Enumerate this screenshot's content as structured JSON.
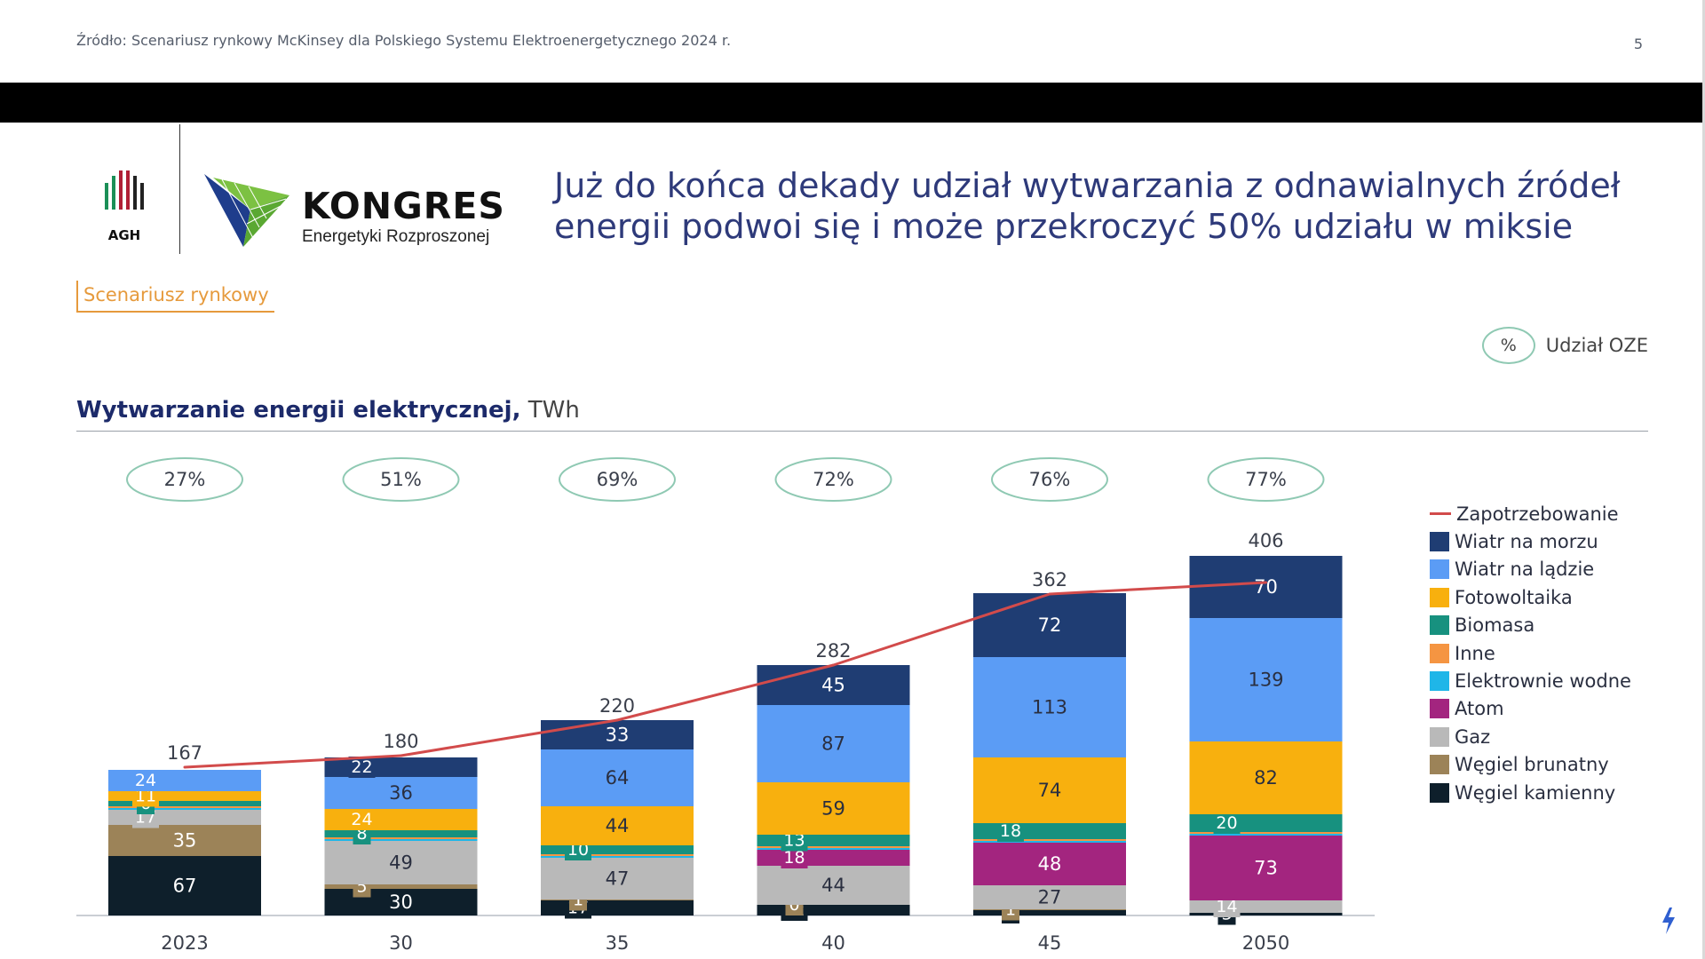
{
  "header": {
    "source": "Źródło: Scenariusz rynkowy McKinsey dla Polskiego Systemu Elektroenergetycznego 2024 r.",
    "page_number": "5"
  },
  "logos": {
    "agh_text": "AGH",
    "kongres_title": "KONGRES",
    "kongres_subtitle": "Energetyki Rozproszonej"
  },
  "headline": "Już do końca dekady udział wytwarzania z odnawialnych źródeł energii podwoi się i może przekroczyć 50% udziału w miksie",
  "scenario_tag": "Scenariusz rynkowy",
  "oze_legend": {
    "symbol": "%",
    "label": "Udział OZE"
  },
  "chart_title": {
    "main": "Wytwarzanie energii elektrycznej,",
    "unit": "TWh"
  },
  "colors": {
    "Wiatr na morzu": "#1f3d73",
    "Wiatr na lądzie": "#5b9cf5",
    "Fotowoltaika": "#f8b00e",
    "Biomasa": "#17917f",
    "Inne": "#f59542",
    "Elektrownie wodne": "#1fb6e8",
    "Atom": "#a3257f",
    "Gaz": "#b9b9b9",
    "Węgiel brunatny": "#9c8358",
    "Węgiel kamienny": "#0e1f2b",
    "Zapotrzebowanie": "#d24b4b"
  },
  "chart_data": {
    "type": "bar",
    "stacked": true,
    "categories": [
      "2023",
      "30",
      "35",
      "40",
      "45",
      "2050"
    ],
    "totals": [
      167,
      180,
      220,
      282,
      362,
      406
    ],
    "oze_share": [
      "27%",
      "51%",
      "69%",
      "72%",
      "76%",
      "77%"
    ],
    "series": [
      {
        "name": "Węgiel kamienny",
        "values": [
          67,
          30,
          17,
          12,
          6,
          3
        ],
        "labels": [
          "67",
          "30",
          "17",
          "12",
          "6",
          "3"
        ]
      },
      {
        "name": "Węgiel brunatny",
        "values": [
          35,
          5,
          1,
          0,
          1,
          0
        ],
        "labels": [
          "35",
          "5",
          "1",
          "0",
          "1",
          ""
        ]
      },
      {
        "name": "Gaz",
        "values": [
          17,
          49,
          47,
          44,
          27,
          14
        ],
        "labels": [
          "17",
          "49",
          "47",
          "44",
          "27",
          "14"
        ]
      },
      {
        "name": "Atom",
        "values": [
          0,
          0,
          0,
          18,
          48,
          73
        ],
        "labels": [
          "",
          "",
          "",
          "18",
          "48",
          "73"
        ]
      },
      {
        "name": "Elektrownie wodne",
        "values": [
          2,
          2,
          2,
          2,
          2,
          2
        ],
        "labels": [
          "",
          "",
          "",
          "",
          "",
          ""
        ]
      },
      {
        "name": "Inne",
        "values": [
          2,
          2,
          2,
          2,
          2,
          2
        ],
        "labels": [
          "",
          "",
          "",
          "",
          "",
          ""
        ]
      },
      {
        "name": "Biomasa",
        "values": [
          6,
          8,
          10,
          13,
          18,
          20
        ],
        "labels": [
          "6",
          "8",
          "10",
          "13",
          "18",
          "20"
        ]
      },
      {
        "name": "Fotowoltaika",
        "values": [
          11,
          24,
          44,
          59,
          74,
          82
        ],
        "labels": [
          "11",
          "24",
          "44",
          "59",
          "74",
          "82"
        ]
      },
      {
        "name": "Wiatr na lądzie",
        "values": [
          24,
          36,
          64,
          87,
          113,
          139
        ],
        "labels": [
          "24",
          "36",
          "64",
          "87",
          "113",
          "139"
        ]
      },
      {
        "name": "Wiatr na morzu",
        "values": [
          0,
          22,
          33,
          45,
          72,
          70
        ],
        "labels": [
          "",
          "22",
          "33",
          "45",
          "72",
          "70"
        ]
      }
    ],
    "demand": {
      "name": "Zapotrzebowanie",
      "values": [
        167,
        180,
        220,
        282,
        362,
        375
      ]
    },
    "legend": [
      "Zapotrzebowanie",
      "Wiatr na morzu",
      "Wiatr na lądzie",
      "Fotowoltaika",
      "Biomasa",
      "Inne",
      "Elektrownie wodne",
      "Atom",
      "Gaz",
      "Węgiel brunatny",
      "Węgiel kamienny"
    ],
    "ylim": [
      0,
      406
    ],
    "grid": false,
    "legend_position": "right"
  }
}
